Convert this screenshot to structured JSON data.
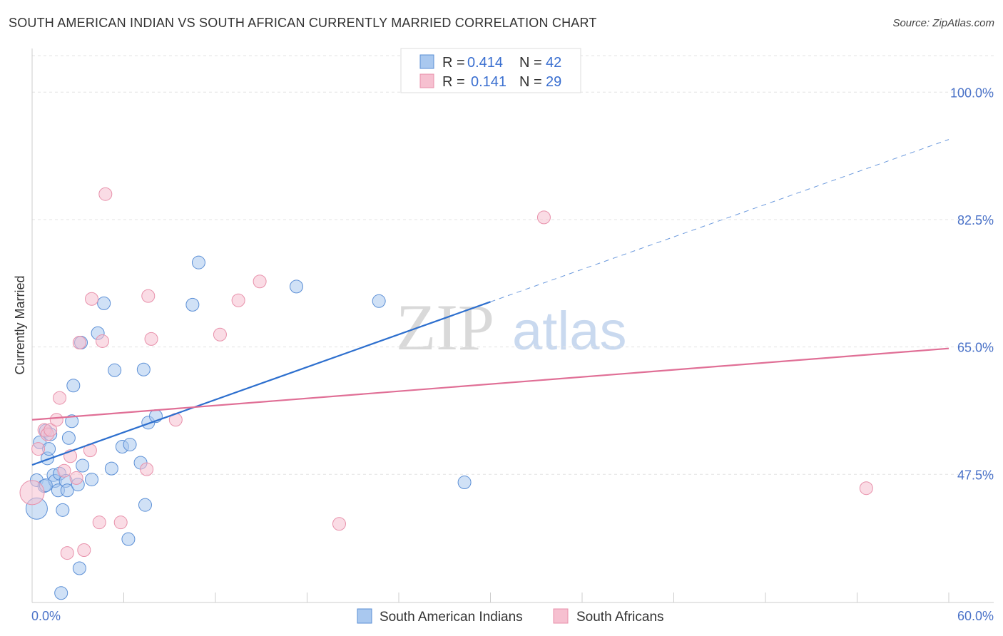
{
  "chart_data": {
    "type": "scatter",
    "title": "SOUTH AMERICAN INDIAN VS SOUTH AFRICAN CURRENTLY MARRIED CORRELATION CHART",
    "source": "Source: ZipAtlas.com",
    "xlabel": "",
    "ylabel": "Currently Married",
    "xlim": [
      0,
      60
    ],
    "ylim": [
      29.9,
      106
    ],
    "x_tick_labels": [
      "0.0%",
      "60.0%"
    ],
    "y_ticks": [
      {
        "value": 100,
        "label": "100.0%"
      },
      {
        "value": 82.5,
        "label": "82.5%"
      },
      {
        "value": 65,
        "label": "65.0%"
      },
      {
        "value": 47.5,
        "label": "47.5%"
      }
    ],
    "watermark": {
      "zip": "ZIP",
      "atlas": "atlas"
    },
    "colors": {
      "blue_fill": "#a9c8ef",
      "blue_stroke": "#5b8fd6",
      "blue_line": "#2d6fce",
      "pink_fill": "#f6c0d0",
      "pink_stroke": "#e891ab",
      "pink_line": "#e06f96"
    },
    "legend": {
      "r_label": "R =",
      "n_label": "N =",
      "rows": [
        {
          "r": "0.414",
          "n": "42",
          "color": "blue"
        },
        {
          "r": "0.141",
          "n": "29",
          "color": "pink"
        }
      ]
    },
    "series": [
      {
        "name": "South American Indians",
        "color": "blue",
        "trend": {
          "x0": 0,
          "y0": 48.8,
          "x1": 30,
          "y1": 71.2,
          "dash_to_x": 60,
          "dash_to_y": 93.5
        },
        "points": [
          [
            0.3,
            42.8,
            14
          ],
          [
            0.3,
            46.7,
            8
          ],
          [
            0.5,
            51.9,
            8
          ],
          [
            0.8,
            45.9,
            8
          ],
          [
            0.9,
            53.5,
            8
          ],
          [
            1.0,
            49.7,
            8
          ],
          [
            1.1,
            51.0,
            8
          ],
          [
            1.2,
            53.0,
            8
          ],
          [
            1.4,
            47.4,
            8
          ],
          [
            1.5,
            46.6,
            8
          ],
          [
            1.7,
            45.3,
            8
          ],
          [
            1.8,
            47.6,
            8
          ],
          [
            2.0,
            42.6,
            8
          ],
          [
            2.2,
            46.6,
            8
          ],
          [
            2.3,
            45.3,
            8
          ],
          [
            2.4,
            52.5,
            8
          ],
          [
            2.6,
            54.8,
            8
          ],
          [
            2.7,
            59.7,
            8
          ],
          [
            3.0,
            46.1,
            8
          ],
          [
            3.1,
            34.6,
            8
          ],
          [
            3.2,
            65.6,
            8
          ],
          [
            3.3,
            48.7,
            8
          ],
          [
            3.9,
            46.8,
            8
          ],
          [
            4.3,
            66.9,
            8
          ],
          [
            4.7,
            71.0,
            8
          ],
          [
            5.2,
            48.3,
            8
          ],
          [
            5.4,
            61.8,
            8
          ],
          [
            5.9,
            51.3,
            8
          ],
          [
            6.4,
            51.6,
            8
          ],
          [
            7.1,
            49.1,
            8
          ],
          [
            7.3,
            61.9,
            8
          ],
          [
            7.4,
            43.3,
            8
          ],
          [
            6.3,
            38.6,
            8
          ],
          [
            7.6,
            54.6,
            8
          ],
          [
            8.1,
            55.5,
            8
          ],
          [
            10.5,
            70.8,
            8
          ],
          [
            10.9,
            76.6,
            8
          ],
          [
            17.3,
            73.3,
            8
          ],
          [
            22.7,
            71.3,
            8
          ],
          [
            28.3,
            46.4,
            8
          ],
          [
            1.9,
            31.2,
            8
          ],
          [
            0.9,
            46.0,
            8
          ]
        ]
      },
      {
        "name": "South Africans",
        "color": "pink",
        "trend": {
          "x0": 0,
          "y0": 55.0,
          "x1": 60,
          "y1": 64.8
        },
        "points": [
          [
            0.0,
            45.0,
            16
          ],
          [
            0.4,
            51.0,
            8
          ],
          [
            0.8,
            53.6,
            8
          ],
          [
            1.0,
            53.0,
            8
          ],
          [
            1.2,
            53.6,
            8
          ],
          [
            1.6,
            55.0,
            8
          ],
          [
            1.8,
            58.0,
            8
          ],
          [
            2.1,
            48.0,
            8
          ],
          [
            2.3,
            36.7,
            8
          ],
          [
            2.5,
            50.0,
            8
          ],
          [
            2.9,
            47.0,
            8
          ],
          [
            3.1,
            65.6,
            8
          ],
          [
            3.4,
            37.1,
            8
          ],
          [
            3.8,
            50.8,
            8
          ],
          [
            3.9,
            71.6,
            8
          ],
          [
            4.4,
            40.9,
            8
          ],
          [
            4.6,
            65.8,
            8
          ],
          [
            4.8,
            86.0,
            8
          ],
          [
            5.8,
            40.9,
            8
          ],
          [
            7.5,
            48.2,
            8
          ],
          [
            7.6,
            72.0,
            8
          ],
          [
            7.8,
            66.1,
            8
          ],
          [
            9.4,
            55.0,
            8
          ],
          [
            12.3,
            66.7,
            8
          ],
          [
            13.5,
            71.4,
            8
          ],
          [
            14.9,
            74.0,
            8
          ],
          [
            20.1,
            40.7,
            8
          ],
          [
            33.5,
            82.8,
            8
          ],
          [
            54.6,
            45.6,
            8
          ]
        ]
      }
    ]
  }
}
